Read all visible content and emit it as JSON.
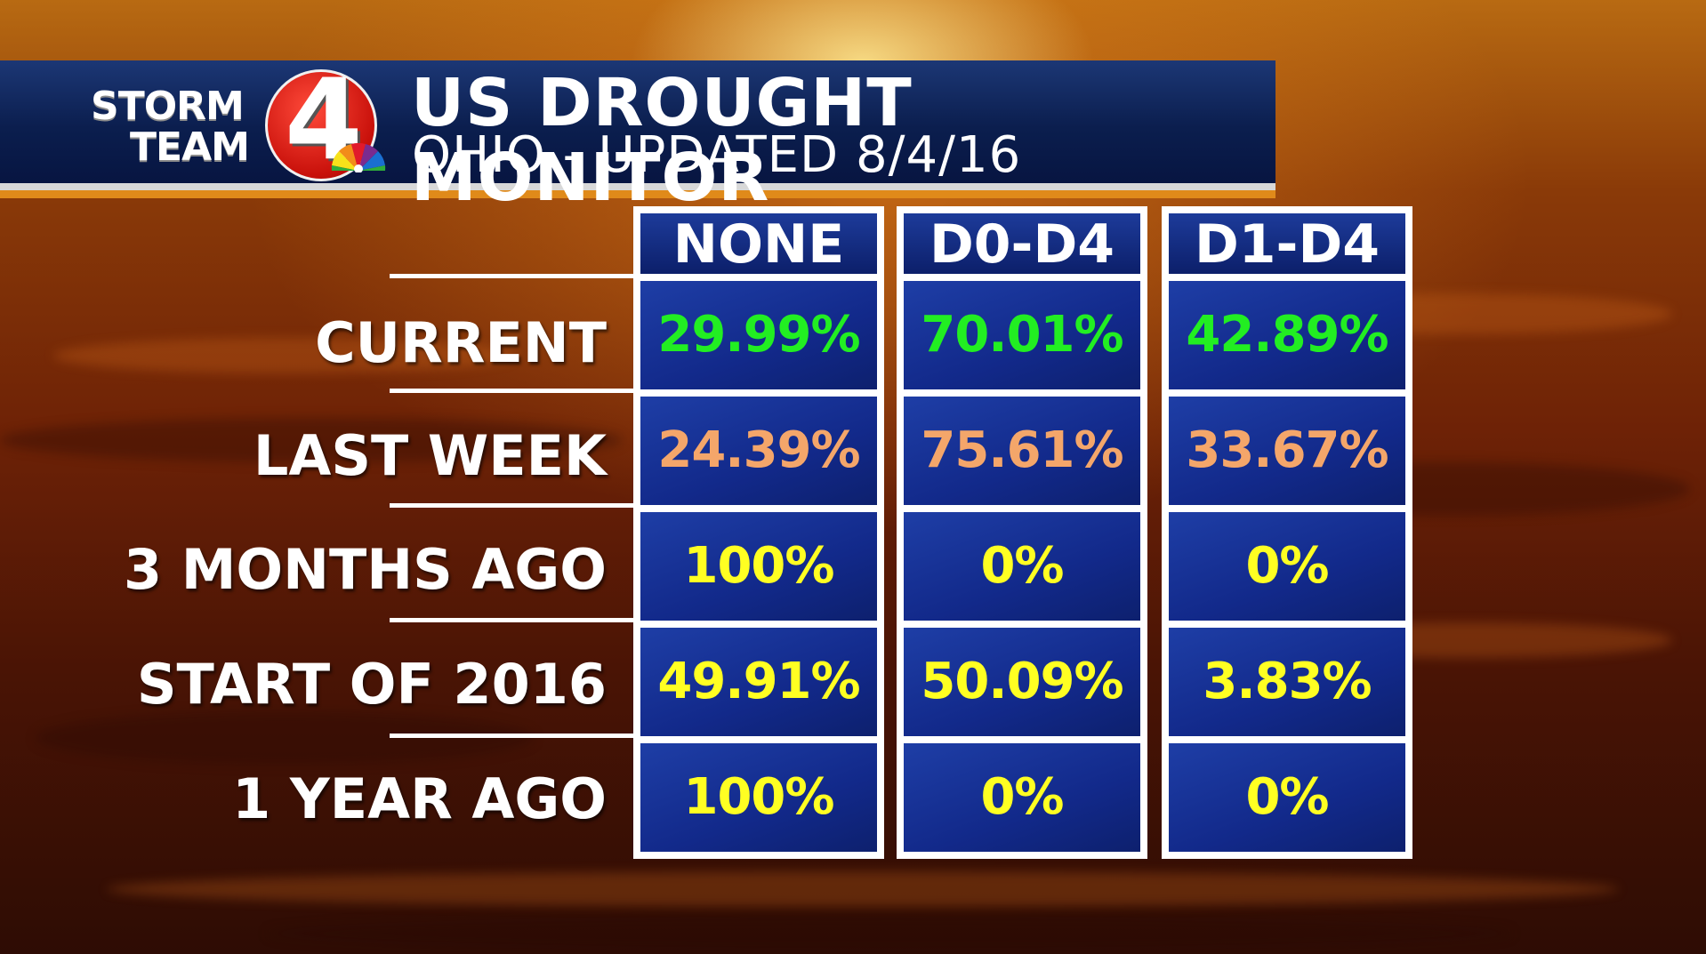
{
  "header": {
    "logo_line1": "STORM",
    "logo_line2": "TEAM",
    "logo_number": "4",
    "title": "US DROUGHT MONITOR",
    "subtitle": "OHIO - UPDATED 8/4/16"
  },
  "table": {
    "columns": [
      "NONE",
      "D0-D4",
      "D1-D4"
    ],
    "rows": [
      {
        "label": "CURRENT",
        "values": [
          "29.99%",
          "70.01%",
          "42.89%"
        ],
        "color": "#22ee22"
      },
      {
        "label": "LAST WEEK",
        "values": [
          "24.39%",
          "75.61%",
          "33.67%"
        ],
        "color": "#f4a66a"
      },
      {
        "label": "3 MONTHS AGO",
        "values": [
          "100%",
          "0%",
          "0%"
        ],
        "color": "#ffff22"
      },
      {
        "label": "START OF 2016",
        "values": [
          "49.91%",
          "50.09%",
          "3.83%"
        ],
        "color": "#ffff22"
      },
      {
        "label": "1 YEAR AGO",
        "values": [
          "100%",
          "0%",
          "0%"
        ],
        "color": "#ffff22"
      }
    ]
  },
  "colors": {
    "banner": "#0b1e4e",
    "cell": "#12298a",
    "current": "#22ee22",
    "last_week": "#f4a66a",
    "historical": "#ffff22"
  }
}
